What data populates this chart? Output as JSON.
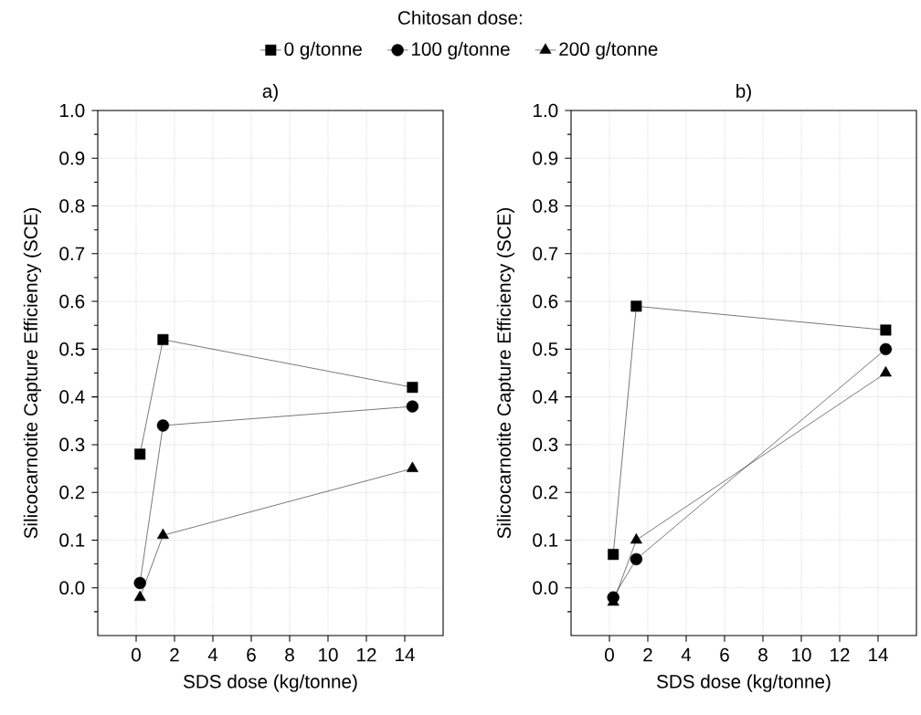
{
  "chart_data": [
    {
      "type": "line",
      "title": "a)",
      "legend_title": "Chitosan dose:",
      "xlabel": "SDS dose (kg/tonne)",
      "ylabel": "Silicocarnotite Capture Efficiency (SCE)",
      "xlim": [
        -2,
        16
      ],
      "ylim": [
        -0.1,
        1.0
      ],
      "xticks": [
        0,
        2,
        4,
        6,
        8,
        10,
        12,
        14
      ],
      "yticks": [
        {
          "value": -0.05,
          "label": null
        },
        {
          "value": 0,
          "label": "0.0"
        },
        {
          "value": 0.05,
          "label": null
        },
        0.1,
        {
          "value": 0.15,
          "label": null
        },
        0.2,
        {
          "value": 0.25,
          "label": null
        },
        0.3,
        {
          "value": 0.35,
          "label": null
        },
        0.4,
        {
          "value": 0.45,
          "label": null
        },
        0.5,
        {
          "value": 0.55,
          "label": null
        },
        0.6,
        {
          "value": 0.65,
          "label": null
        },
        0.7,
        {
          "value": 0.75,
          "label": null
        },
        0.8,
        {
          "value": 0.85,
          "label": null
        },
        0.9,
        {
          "value": 0.95,
          "label": null
        },
        {
          "value": 1.0,
          "label": "1.0"
        }
      ],
      "grid": true,
      "legend": "top",
      "line_style": "solid",
      "series": [
        {
          "name": "0 g/tonne",
          "color": "#000000",
          "marker": "square",
          "x": [
            0.2,
            1.4,
            14.4
          ],
          "values": [
            0.28,
            0.52,
            0.42
          ]
        },
        {
          "name": "100 g/tonne",
          "color": "#000000",
          "marker": "circle",
          "x": [
            0.2,
            1.4,
            14.4
          ],
          "values": [
            0.01,
            0.34,
            0.38
          ]
        },
        {
          "name": "200 g/tonne",
          "color": "#000000",
          "marker": "triangle",
          "x": [
            0.2,
            1.4,
            14.4
          ],
          "values": [
            -0.02,
            0.11,
            0.25
          ]
        }
      ]
    },
    {
      "type": "line",
      "title": "b)",
      "xlabel": "SDS dose (kg/tonne)",
      "ylabel": "Silicocarnotite Capture Efficiency (SCE)",
      "xlim": [
        -2,
        16
      ],
      "ylim": [
        -0.1,
        1.0
      ],
      "xticks": [
        0,
        2,
        4,
        6,
        8,
        10,
        12,
        14
      ],
      "yticks": [
        {
          "value": -0.05,
          "label": null
        },
        {
          "value": 0,
          "label": "0.0"
        },
        {
          "value": 0.05,
          "label": null
        },
        0.1,
        {
          "value": 0.15,
          "label": null
        },
        0.2,
        {
          "value": 0.25,
          "label": null
        },
        0.3,
        {
          "value": 0.35,
          "label": null
        },
        0.4,
        {
          "value": 0.45,
          "label": null
        },
        0.5,
        {
          "value": 0.55,
          "label": null
        },
        0.6,
        {
          "value": 0.65,
          "label": null
        },
        0.7,
        {
          "value": 0.75,
          "label": null
        },
        0.8,
        {
          "value": 0.85,
          "label": null
        },
        0.9,
        {
          "value": 0.95,
          "label": null
        },
        {
          "value": 1.0,
          "label": "1.0"
        }
      ],
      "grid": true,
      "line_style": "solid",
      "series": [
        {
          "color": "#000000",
          "marker": "square",
          "x": [
            0.2,
            1.4,
            14.4
          ],
          "values": [
            0.07,
            0.59,
            0.54
          ]
        },
        {
          "color": "#000000",
          "marker": "triangle",
          "x": [
            0.2,
            1.4,
            14.4
          ],
          "values": [
            -0.03,
            0.1,
            0.45
          ]
        },
        {
          "color": "#000000",
          "marker": "circle",
          "x": [
            0.2,
            1.4,
            14.4
          ],
          "values": [
            -0.02,
            0.06,
            0.5
          ]
        }
      ]
    }
  ]
}
